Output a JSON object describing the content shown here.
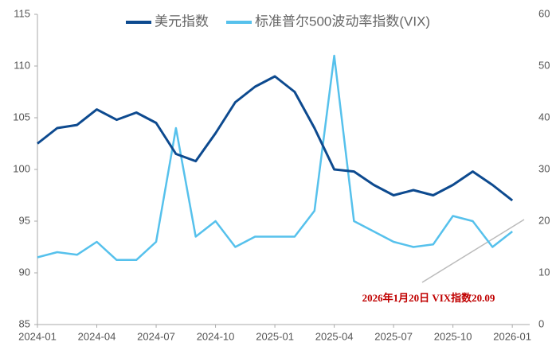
{
  "chart_data": {
    "type": "line",
    "x": [
      "2024-01",
      "2024-02",
      "2024-03",
      "2024-04",
      "2024-05",
      "2024-06",
      "2024-07",
      "2024-08",
      "2024-09",
      "2024-10",
      "2024-11",
      "2024-12",
      "2025-01",
      "2025-02",
      "2025-03",
      "2025-04",
      "2025-05",
      "2025-06",
      "2025-07",
      "2025-08",
      "2025-09",
      "2025-10",
      "2025-11",
      "2025-12",
      "2026-01"
    ],
    "series": [
      {
        "name": "美元指数",
        "color": "#0d4a8f",
        "values": [
          102.5,
          104,
          104.3,
          105.8,
          104.8,
          105.5,
          104.5,
          101.5,
          100.8,
          103.5,
          106.5,
          108,
          109,
          107.5,
          104,
          100,
          99.8,
          98.5,
          97.5,
          98,
          97.5,
          98.5,
          99.8,
          98.5,
          97
        ]
      },
      {
        "name": "标准普尔500波动率指数(VIX)",
        "color": "#56c1ec",
        "axis": "y2",
        "values": [
          13,
          14,
          13.5,
          16,
          12.5,
          12.5,
          16,
          38,
          17,
          20,
          15,
          17,
          17,
          17,
          22,
          52,
          20,
          18,
          16,
          15,
          15.5,
          21,
          20,
          15,
          18
        ]
      }
    ],
    "xlim": [
      "2024-01",
      "2026-02"
    ],
    "xticks": [
      "2024-01",
      "2024-04",
      "2024-07",
      "2024-10",
      "2025-01",
      "2025-04",
      "2025-07",
      "2025-10",
      "2026-01"
    ],
    "ylim": [
      85,
      115
    ],
    "yticks": [
      85,
      90,
      95,
      100,
      105,
      110,
      115
    ],
    "y2lim": [
      0,
      60
    ],
    "y2ticks": [
      0,
      10,
      20,
      30,
      40,
      50,
      60
    ],
    "annotation": "2026年1月20日 VIX指数20.09",
    "legend": "top",
    "grid": false
  }
}
